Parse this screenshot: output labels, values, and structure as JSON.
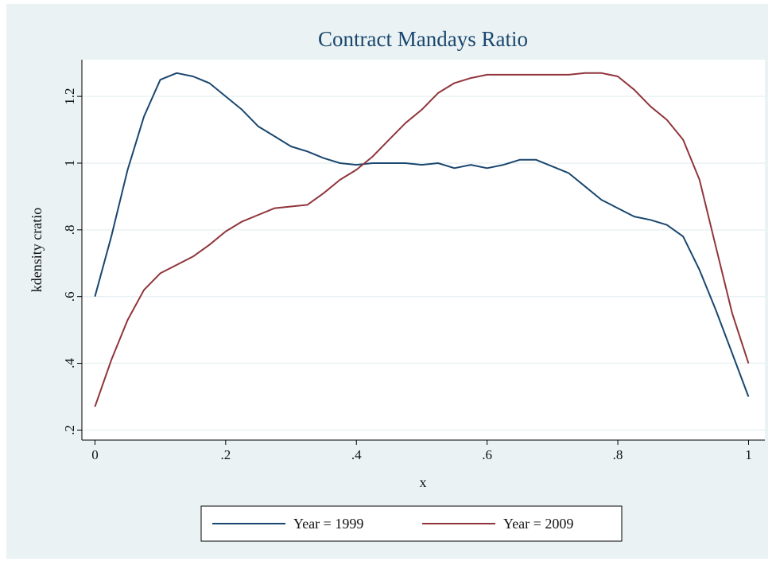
{
  "chart_data": {
    "type": "line",
    "title": "Contract Mandays Ratio",
    "x_label": "x",
    "y_label": "kdensity cratio",
    "x": [
      0,
      0.025,
      0.05,
      0.075,
      0.1,
      0.125,
      0.15,
      0.175,
      0.2,
      0.225,
      0.25,
      0.275,
      0.3,
      0.325,
      0.35,
      0.375,
      0.4,
      0.425,
      0.45,
      0.475,
      0.5,
      0.525,
      0.55,
      0.575,
      0.6,
      0.625,
      0.65,
      0.675,
      0.7,
      0.725,
      0.75,
      0.775,
      0.8,
      0.825,
      0.85,
      0.875,
      0.9,
      0.925,
      0.95,
      0.975,
      1
    ],
    "series": [
      {
        "name": "Year = 1999",
        "color": "#1a476f",
        "values": [
          0.6,
          0.78,
          0.98,
          1.14,
          1.25,
          1.27,
          1.26,
          1.24,
          1.2,
          1.16,
          1.11,
          1.08,
          1.05,
          1.035,
          1.015,
          1.0,
          0.995,
          1.0,
          1.0,
          1.0,
          0.995,
          1.0,
          0.985,
          0.995,
          0.985,
          0.995,
          1.01,
          1.01,
          0.99,
          0.97,
          0.93,
          0.89,
          0.865,
          0.84,
          0.83,
          0.815,
          0.78,
          0.68,
          0.56,
          0.43,
          0.3
        ]
      },
      {
        "name": "Year = 2009",
        "color": "#90353b",
        "values": [
          0.27,
          0.41,
          0.53,
          0.62,
          0.67,
          0.695,
          0.72,
          0.755,
          0.795,
          0.825,
          0.845,
          0.865,
          0.87,
          0.875,
          0.91,
          0.95,
          0.98,
          1.02,
          1.07,
          1.12,
          1.16,
          1.21,
          1.24,
          1.255,
          1.265,
          1.265,
          1.265,
          1.265,
          1.265,
          1.265,
          1.27,
          1.27,
          1.26,
          1.22,
          1.17,
          1.13,
          1.07,
          0.95,
          0.75,
          0.55,
          0.4
        ]
      }
    ],
    "xlim": [
      -0.02,
      1.025
    ],
    "xticks": [
      0,
      {
        "value": 0.2,
        "label": ".2"
      },
      {
        "value": 0.4,
        "label": ".4"
      },
      {
        "value": 0.6,
        "label": ".6"
      },
      {
        "value": 0.8,
        "label": ".8"
      },
      1
    ],
    "ylim": [
      0.17,
      1.31
    ],
    "yticks": [
      {
        "value": 0.2,
        "label": ".2"
      },
      {
        "value": 0.4,
        "label": ".4"
      },
      {
        "value": 0.6,
        "label": ".6"
      },
      {
        "value": 0.8,
        "label": ".8"
      },
      1,
      1.2
    ],
    "grid": true,
    "legend": "bottom"
  }
}
